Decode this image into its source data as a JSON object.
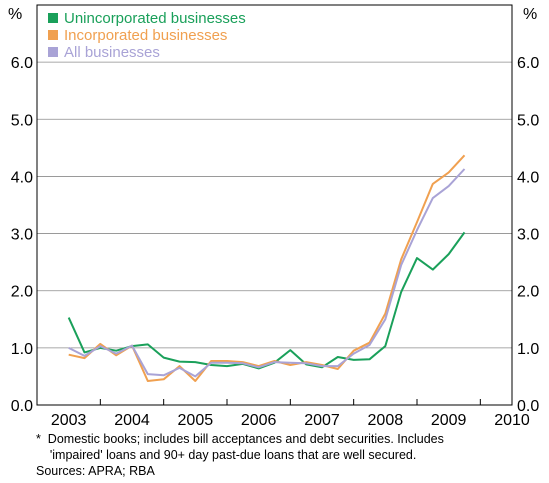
{
  "unit_left": "%",
  "unit_right": "%",
  "footnote_line1": "*  Domestic books; includes bill acceptances and debt securities. Includes",
  "footnote_line2": "    'impaired' loans and 90+ day past-due loans that are well secured.",
  "sources": "Sources: APRA; RBA",
  "chart_data": {
    "type": "line",
    "title": "",
    "xlabel": "",
    "ylabel": "%",
    "xlim": [
      2003.0,
      2010.5
    ],
    "ylim": [
      0,
      7
    ],
    "yticks": [
      0,
      1,
      2,
      3,
      4,
      5,
      6
    ],
    "ytick_labels": [
      "0.0",
      "1.0",
      "2.0",
      "3.0",
      "4.0",
      "5.0",
      "6.0"
    ],
    "xtick_labels": [
      "2003",
      "2004",
      "2005",
      "2006",
      "2007",
      "2008",
      "2009",
      "2010"
    ],
    "grid": true,
    "legend": "top-left",
    "x": [
      2003.5,
      2003.75,
      2004.0,
      2004.25,
      2004.5,
      2004.75,
      2005.0,
      2005.25,
      2005.5,
      2005.75,
      2006.0,
      2006.25,
      2006.5,
      2006.75,
      2007.0,
      2007.25,
      2007.5,
      2007.75,
      2008.0,
      2008.25,
      2008.5,
      2008.75,
      2009.0,
      2009.25,
      2009.5,
      2009.75,
      2010.0
    ],
    "series": [
      {
        "name": "Unincorporated businesses",
        "color": "#1aa05a",
        "values": [
          1.53,
          0.92,
          1.0,
          0.95,
          1.03,
          1.06,
          0.83,
          0.76,
          0.75,
          0.7,
          0.68,
          0.72,
          0.64,
          0.74,
          0.96,
          0.71,
          0.66,
          0.84,
          0.79,
          0.8,
          1.03,
          1.98,
          2.57,
          2.37,
          2.64,
          3.02,
          null
        ]
      },
      {
        "name": "Incorporated businesses",
        "color": "#f0a050",
        "values": [
          0.88,
          0.82,
          1.07,
          0.87,
          1.04,
          0.42,
          0.45,
          0.68,
          0.42,
          0.77,
          0.77,
          0.75,
          0.68,
          0.77,
          0.7,
          0.75,
          0.7,
          0.63,
          0.95,
          1.09,
          1.6,
          2.55,
          3.2,
          3.87,
          4.07,
          4.37,
          null
        ]
      },
      {
        "name": "All businesses",
        "color": "#a9a3d6",
        "values": [
          1.0,
          0.86,
          1.03,
          0.9,
          1.04,
          0.54,
          0.52,
          0.65,
          0.5,
          0.74,
          0.74,
          0.73,
          0.66,
          0.75,
          0.74,
          0.73,
          0.68,
          0.68,
          0.9,
          1.05,
          1.5,
          2.45,
          3.06,
          3.62,
          3.83,
          4.13,
          null
        ]
      }
    ]
  }
}
